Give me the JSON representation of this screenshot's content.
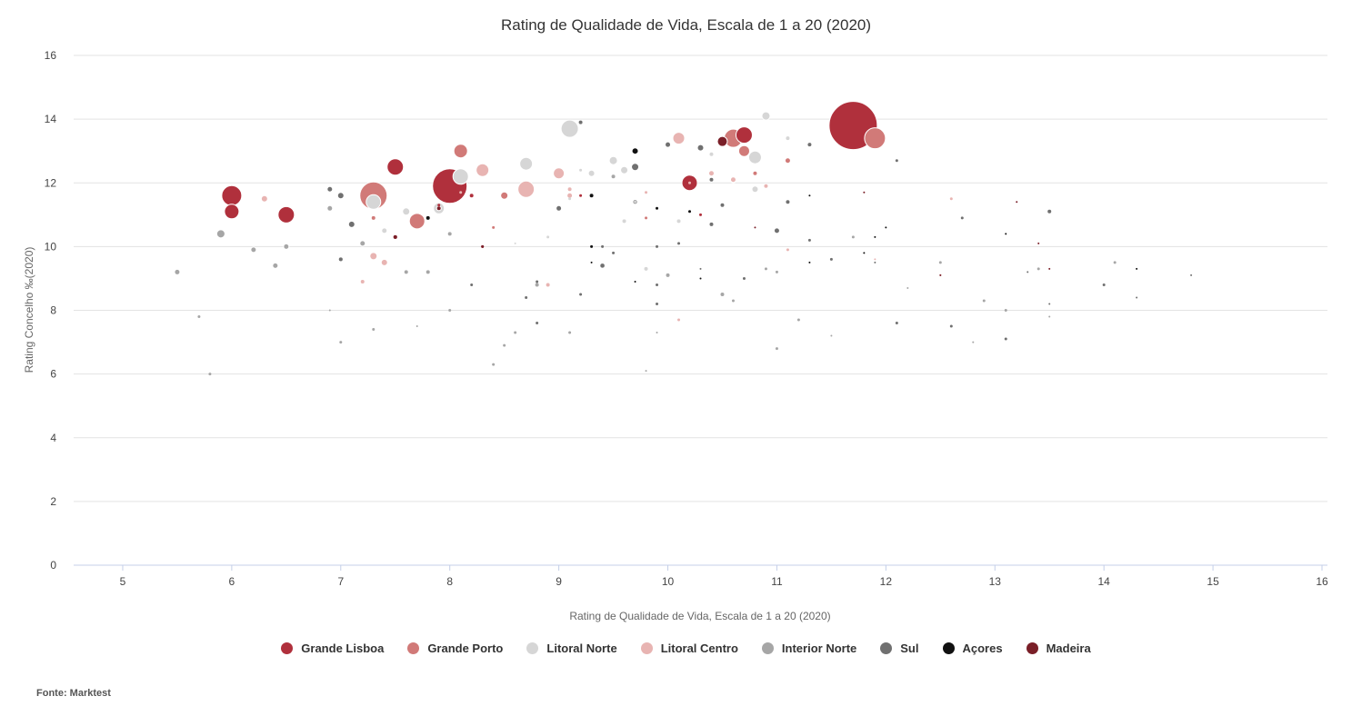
{
  "chart_data": {
    "type": "scatter",
    "title": "Rating de Qualidade de Vida, Escala de 1 a 20 (2020)",
    "xlabel": "Rating de Qualidade de Vida, Escala de 1 a 20 (2020)",
    "ylabel": "Rating Concelho ‰(2020)",
    "xlim": [
      4.55,
      16.05
    ],
    "ylim": [
      0,
      16
    ],
    "xticks": [
      5,
      6,
      7,
      8,
      9,
      10,
      11,
      12,
      13,
      14,
      15,
      16
    ],
    "yticks": [
      0,
      2,
      4,
      6,
      8,
      10,
      12,
      14,
      16
    ],
    "grid": "horizontal",
    "legend_position": "bottom",
    "size_encoding": "bubble",
    "series": [
      {
        "name": "Grande Lisboa",
        "color": "#b0303c",
        "points": [
          [
            11.7,
            13.8,
            53
          ],
          [
            8.0,
            11.9,
            38
          ],
          [
            6.0,
            11.6,
            22
          ],
          [
            6.5,
            11.0,
            18
          ],
          [
            7.5,
            12.5,
            18
          ],
          [
            10.7,
            13.5,
            18
          ],
          [
            10.2,
            12.0,
            17
          ],
          [
            6.0,
            11.1,
            16
          ],
          [
            8.5,
            11.6,
            9
          ],
          [
            7.5,
            10.3,
            4
          ],
          [
            8.3,
            10.0,
            3
          ],
          [
            8.2,
            11.6,
            4
          ],
          [
            9.2,
            11.6,
            3
          ],
          [
            10.3,
            11.0,
            3
          ],
          [
            7.9,
            11.3,
            3
          ]
        ]
      },
      {
        "name": "Grande Porto",
        "color": "#d17a78",
        "points": [
          [
            7.3,
            11.6,
            30
          ],
          [
            11.9,
            13.4,
            23
          ],
          [
            10.6,
            13.4,
            20
          ],
          [
            7.7,
            10.8,
            17
          ],
          [
            8.1,
            13.0,
            15
          ],
          [
            10.7,
            13.0,
            12
          ],
          [
            8.5,
            11.6,
            8
          ],
          [
            10.6,
            12.1,
            7
          ],
          [
            11.1,
            12.7,
            6
          ],
          [
            10.8,
            12.3,
            5
          ],
          [
            7.3,
            10.9,
            4
          ],
          [
            8.4,
            10.6,
            3
          ],
          [
            12.5,
            9.1,
            2
          ],
          [
            9.8,
            10.9,
            3
          ]
        ]
      },
      {
        "name": "Litoral Norte",
        "color": "#d6d6d6",
        "points": [
          [
            9.1,
            13.7,
            19
          ],
          [
            8.1,
            12.2,
            17
          ],
          [
            7.3,
            11.4,
            16
          ],
          [
            10.8,
            12.8,
            14
          ],
          [
            8.7,
            12.6,
            14
          ],
          [
            7.9,
            11.2,
            12
          ],
          [
            10.9,
            14.1,
            9
          ],
          [
            7.6,
            11.1,
            8
          ],
          [
            9.6,
            12.4,
            8
          ],
          [
            9.3,
            12.3,
            7
          ],
          [
            9.5,
            12.7,
            9
          ],
          [
            10.8,
            11.8,
            7
          ],
          [
            10.1,
            10.8,
            4
          ],
          [
            9.6,
            10.8,
            5
          ],
          [
            11.1,
            13.4,
            4
          ],
          [
            9.1,
            11.5,
            3
          ],
          [
            7.4,
            10.5,
            6
          ],
          [
            9.2,
            12.4,
            3
          ],
          [
            8.9,
            10.3,
            3
          ],
          [
            10.4,
            12.9,
            5
          ],
          [
            9.8,
            9.3,
            4
          ],
          [
            8.6,
            10.1,
            2
          ],
          [
            9.7,
            11.4,
            3
          ]
        ]
      },
      {
        "name": "Litoral Centro",
        "color": "#e8b4b2",
        "points": [
          [
            8.7,
            11.8,
            18
          ],
          [
            8.3,
            12.4,
            14
          ],
          [
            10.1,
            13.4,
            13
          ],
          [
            9.0,
            12.3,
            12
          ],
          [
            6.3,
            11.5,
            7
          ],
          [
            7.3,
            9.7,
            8
          ],
          [
            7.4,
            9.5,
            7
          ],
          [
            7.2,
            8.9,
            5
          ],
          [
            9.1,
            11.6,
            6
          ],
          [
            10.4,
            12.3,
            6
          ],
          [
            10.6,
            12.1,
            6
          ],
          [
            10.9,
            11.9,
            5
          ],
          [
            8.9,
            8.8,
            4
          ],
          [
            9.8,
            11.7,
            3
          ],
          [
            10.2,
            12.0,
            3
          ],
          [
            8.1,
            11.7,
            3
          ],
          [
            9.1,
            11.8,
            4
          ],
          [
            11.1,
            9.9,
            3
          ],
          [
            12.6,
            11.5,
            3
          ],
          [
            11.9,
            9.6,
            2
          ],
          [
            10.1,
            7.7,
            3
          ]
        ]
      },
      {
        "name": "Interior Norte",
        "color": "#a6a6a6",
        "points": [
          [
            5.5,
            9.2,
            6
          ],
          [
            5.9,
            10.4,
            9
          ],
          [
            6.2,
            9.9,
            6
          ],
          [
            6.5,
            10.0,
            6
          ],
          [
            6.4,
            9.4,
            6
          ],
          [
            6.9,
            11.2,
            6
          ],
          [
            7.0,
            9.6,
            5
          ],
          [
            7.2,
            10.1,
            6
          ],
          [
            7.6,
            9.2,
            4
          ],
          [
            7.8,
            9.2,
            5
          ],
          [
            8.0,
            10.4,
            4
          ],
          [
            8.8,
            8.8,
            4
          ],
          [
            9.4,
            9.4,
            6
          ],
          [
            9.5,
            12.2,
            4
          ],
          [
            10.0,
            9.1,
            4
          ],
          [
            10.5,
            8.5,
            4
          ],
          [
            10.6,
            8.3,
            3
          ],
          [
            11.0,
            9.2,
            3
          ],
          [
            12.5,
            9.5,
            3
          ],
          [
            12.9,
            8.3,
            3
          ],
          [
            13.4,
            9.3,
            3
          ],
          [
            14.1,
            9.5,
            3
          ],
          [
            5.7,
            7.8,
            3
          ],
          [
            5.8,
            6.0,
            3
          ],
          [
            7.0,
            7.0,
            3
          ],
          [
            8.4,
            6.3,
            3
          ],
          [
            9.8,
            6.1,
            2
          ],
          [
            11.0,
            6.8,
            3
          ],
          [
            11.5,
            7.2,
            2
          ],
          [
            12.8,
            7.0,
            2
          ],
          [
            13.5,
            7.8,
            2
          ],
          [
            8.0,
            8.0,
            3
          ],
          [
            8.6,
            7.3,
            3
          ],
          [
            9.1,
            7.3,
            3
          ],
          [
            9.9,
            7.3,
            2
          ],
          [
            11.2,
            7.7,
            3
          ],
          [
            7.7,
            7.5,
            2
          ],
          [
            6.9,
            8.0,
            2
          ],
          [
            7.3,
            7.4,
            3
          ],
          [
            8.5,
            6.9,
            3
          ],
          [
            10.9,
            9.3,
            3
          ],
          [
            11.7,
            10.3,
            3
          ],
          [
            12.2,
            8.7,
            2
          ],
          [
            13.1,
            8.0,
            3
          ]
        ]
      },
      {
        "name": "Sul",
        "color": "#707070",
        "points": [
          [
            6.9,
            11.8,
            6
          ],
          [
            7.0,
            11.6,
            7
          ],
          [
            7.1,
            10.7,
            7
          ],
          [
            7.0,
            9.6,
            4
          ],
          [
            9.2,
            13.9,
            5
          ],
          [
            9.7,
            12.5,
            8
          ],
          [
            10.0,
            13.2,
            6
          ],
          [
            10.3,
            13.1,
            7
          ],
          [
            10.4,
            12.1,
            5
          ],
          [
            9.0,
            11.2,
            6
          ],
          [
            9.4,
            9.4,
            4
          ],
          [
            9.7,
            11.4,
            5
          ],
          [
            10.5,
            11.3,
            4
          ],
          [
            11.0,
            10.5,
            6
          ],
          [
            11.1,
            11.4,
            4
          ],
          [
            12.1,
            12.7,
            3
          ],
          [
            13.5,
            11.1,
            4
          ],
          [
            10.1,
            10.1,
            3
          ],
          [
            9.9,
            8.8,
            3
          ],
          [
            8.8,
            8.9,
            3
          ],
          [
            9.5,
            9.8,
            3
          ],
          [
            10.4,
            10.7,
            4
          ],
          [
            11.3,
            10.2,
            3
          ],
          [
            12.7,
            10.9,
            3
          ],
          [
            11.5,
            9.6,
            3
          ],
          [
            11.3,
            13.2,
            4
          ],
          [
            10.7,
            9.0,
            3
          ],
          [
            9.9,
            10.0,
            3
          ],
          [
            9.4,
            10.0,
            3
          ],
          [
            13.5,
            8.2,
            2
          ],
          [
            14.3,
            8.4,
            2
          ],
          [
            8.7,
            8.4,
            3
          ],
          [
            8.2,
            8.8,
            3
          ],
          [
            9.2,
            8.5,
            3
          ],
          [
            10.3,
            9.3,
            2
          ],
          [
            12.1,
            7.6,
            3
          ],
          [
            12.6,
            7.5,
            3
          ],
          [
            13.1,
            7.1,
            3
          ],
          [
            13.3,
            9.2,
            2
          ],
          [
            14.0,
            8.8,
            3
          ],
          [
            14.8,
            9.1,
            2
          ],
          [
            11.9,
            9.5,
            2
          ],
          [
            8.8,
            7.6,
            3
          ],
          [
            9.9,
            8.2,
            3
          ]
        ]
      },
      {
        "name": "Açores",
        "color": "#111111",
        "points": [
          [
            9.7,
            13.0,
            7
          ],
          [
            7.8,
            10.9,
            4
          ],
          [
            9.9,
            11.2,
            3
          ],
          [
            10.2,
            11.1,
            3
          ],
          [
            9.3,
            11.6,
            4
          ],
          [
            9.3,
            10.0,
            3
          ],
          [
            11.3,
            11.6,
            2
          ],
          [
            11.8,
            9.8,
            2
          ],
          [
            11.9,
            10.3,
            2
          ],
          [
            12.0,
            10.6,
            2
          ],
          [
            13.1,
            10.4,
            2
          ],
          [
            14.3,
            9.3,
            2
          ],
          [
            10.3,
            9.0,
            2
          ],
          [
            9.3,
            9.5,
            2
          ],
          [
            11.3,
            9.5,
            2
          ],
          [
            9.7,
            8.9,
            2
          ]
        ]
      },
      {
        "name": "Madeira",
        "color": "#7a1f28",
        "points": [
          [
            10.5,
            13.3,
            11
          ],
          [
            7.9,
            11.2,
            5
          ],
          [
            7.5,
            10.3,
            4
          ],
          [
            8.3,
            10.0,
            3
          ],
          [
            10.8,
            10.6,
            2
          ],
          [
            11.8,
            11.7,
            2
          ],
          [
            13.2,
            11.4,
            2
          ],
          [
            13.4,
            10.1,
            2
          ],
          [
            12.5,
            9.1,
            2
          ],
          [
            13.5,
            9.3,
            2
          ]
        ]
      }
    ]
  },
  "legend": {
    "items": [
      {
        "label": "Grande Lisboa",
        "color": "#b0303c"
      },
      {
        "label": "Grande Porto",
        "color": "#d17a78"
      },
      {
        "label": "Litoral Norte",
        "color": "#d6d6d6"
      },
      {
        "label": "Litoral Centro",
        "color": "#e8b4b2"
      },
      {
        "label": "Interior Norte",
        "color": "#a6a6a6"
      },
      {
        "label": "Sul",
        "color": "#707070"
      },
      {
        "label": "Açores",
        "color": "#111111"
      },
      {
        "label": "Madeira",
        "color": "#7a1f28"
      }
    ]
  },
  "source": "Fonte: Marktest"
}
